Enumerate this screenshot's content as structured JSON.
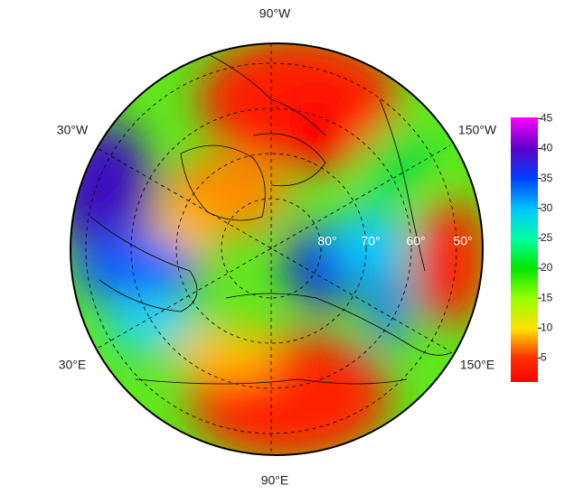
{
  "map": {
    "longitude_labels": {
      "top": "90°W",
      "upper_left": "30°W",
      "upper_right": "150°W",
      "lower_left": "30°E",
      "lower_right": "150°E",
      "bottom": "90°E"
    },
    "latitude_labels": [
      "80°",
      "70°",
      "60°",
      "50°"
    ]
  },
  "colorbar": {
    "lim": [
      1,
      45.2
    ],
    "ticks": [
      5,
      10,
      15,
      20,
      25,
      30,
      35,
      40,
      45
    ]
  }
}
